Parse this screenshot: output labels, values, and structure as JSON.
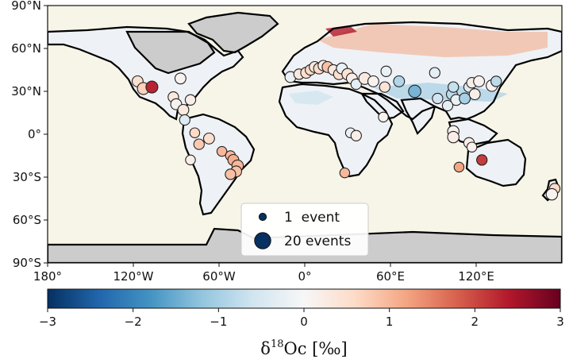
{
  "chart_data": {
    "type": "scatter",
    "title": "",
    "map": {
      "projection": "equirectangular",
      "xlim": [
        -180,
        180
      ],
      "ylim": [
        -90,
        90
      ],
      "x_ticks": [
        -180,
        -120,
        -60,
        0,
        60,
        120
      ],
      "x_tick_labels": [
        "180°",
        "120°W",
        "60°W",
        "0°",
        "60°E",
        "120°E"
      ],
      "y_ticks": [
        90,
        60,
        30,
        0,
        -30,
        -60,
        -90
      ],
      "y_tick_labels": [
        "90°N",
        "60°N",
        "30°N",
        "0°",
        "30°S",
        "60°S",
        "90°S"
      ],
      "ocean_color": "#f7f5e8",
      "ice_color": "#cccccc",
      "coastline_color": "#000000"
    },
    "colorbar": {
      "label_main": "δ",
      "label_sup": "18",
      "label_rest": "Oc [‰]",
      "vmin": -3,
      "vmax": 3,
      "ticks": [
        -3,
        -2,
        -1,
        0,
        1,
        2,
        3
      ],
      "tick_labels": [
        "−3",
        "−2",
        "−1",
        "0",
        "1",
        "2",
        "3"
      ],
      "colormap": "RdBu_r",
      "stops": [
        "#053061",
        "#2166ac",
        "#4393c3",
        "#92c5de",
        "#d1e5f0",
        "#f7f7f7",
        "#fddbc7",
        "#f4a582",
        "#d6604d",
        "#b2182b",
        "#67001f"
      ]
    },
    "legend": {
      "position": "bottom-center",
      "entries": [
        {
          "label": "1  event",
          "events": 1
        },
        {
          "label": "20 events",
          "events": 20
        }
      ]
    },
    "series": [
      {
        "points": [
          {
            "lon": -117,
            "lat": 37,
            "value": 0.5,
            "events": 6
          },
          {
            "lon": -113,
            "lat": 32,
            "value": 0.7,
            "events": 8
          },
          {
            "lon": -107,
            "lat": 33,
            "value": 2.3,
            "events": 8
          },
          {
            "lon": -87,
            "lat": 39,
            "value": 0.1,
            "events": 6
          },
          {
            "lon": -92,
            "lat": 26,
            "value": 0.3,
            "events": 5
          },
          {
            "lon": -90,
            "lat": 21,
            "value": 0.1,
            "events": 6
          },
          {
            "lon": -85,
            "lat": 17,
            "value": 0.3,
            "events": 6
          },
          {
            "lon": -80,
            "lat": 24,
            "value": 0.2,
            "events": 5
          },
          {
            "lon": -84,
            "lat": 10,
            "value": -0.4,
            "events": 5
          },
          {
            "lon": -77,
            "lat": 1,
            "value": 0.6,
            "events": 4
          },
          {
            "lon": -74,
            "lat": -7,
            "value": 0.8,
            "events": 5
          },
          {
            "lon": -67,
            "lat": -3,
            "value": 0.5,
            "events": 6
          },
          {
            "lon": -80,
            "lat": -18,
            "value": 0.2,
            "events": 4
          },
          {
            "lon": -58,
            "lat": -12,
            "value": 1.0,
            "events": 4
          },
          {
            "lon": -52,
            "lat": -15,
            "value": 1.0,
            "events": 4
          },
          {
            "lon": -50,
            "lat": -18,
            "value": 1.1,
            "events": 6
          },
          {
            "lon": -47,
            "lat": -22,
            "value": 1.0,
            "events": 7
          },
          {
            "lon": -48,
            "lat": -26,
            "value": 0.9,
            "events": 6
          },
          {
            "lon": -52,
            "lat": -28,
            "value": 0.9,
            "events": 5
          },
          {
            "lon": -10,
            "lat": 40,
            "value": -0.2,
            "events": 6
          },
          {
            "lon": -4,
            "lat": 42,
            "value": 0.3,
            "events": 5
          },
          {
            "lon": 1,
            "lat": 43,
            "value": 0.5,
            "events": 6
          },
          {
            "lon": 4,
            "lat": 45,
            "value": 0.6,
            "events": 5
          },
          {
            "lon": 7,
            "lat": 47,
            "value": 0.3,
            "events": 6
          },
          {
            "lon": 10,
            "lat": 46,
            "value": 0.6,
            "events": 6
          },
          {
            "lon": 13,
            "lat": 48,
            "value": 0.2,
            "events": 5
          },
          {
            "lon": 16,
            "lat": 47,
            "value": 0.9,
            "events": 6
          },
          {
            "lon": 20,
            "lat": 45,
            "value": 0.3,
            "events": 5
          },
          {
            "lon": 24,
            "lat": 42,
            "value": 0.5,
            "events": 6
          },
          {
            "lon": 26,
            "lat": 46,
            "value": -0.2,
            "events": 6
          },
          {
            "lon": 30,
            "lat": 42,
            "value": 0.4,
            "events": 7
          },
          {
            "lon": 33,
            "lat": 39,
            "value": 0.2,
            "events": 6
          },
          {
            "lon": 36,
            "lat": 35,
            "value": -0.3,
            "events": 5
          },
          {
            "lon": 42,
            "lat": 39,
            "value": 0.3,
            "events": 8
          },
          {
            "lon": 48,
            "lat": 37,
            "value": 0.1,
            "events": 6
          },
          {
            "lon": 56,
            "lat": 33,
            "value": 0.4,
            "events": 5
          },
          {
            "lon": 66,
            "lat": 37,
            "value": -0.9,
            "events": 6
          },
          {
            "lon": 77,
            "lat": 30,
            "value": -1.4,
            "events": 9
          },
          {
            "lon": 93,
            "lat": 25,
            "value": -0.6,
            "events": 5
          },
          {
            "lon": 103,
            "lat": 28,
            "value": -0.8,
            "events": 6
          },
          {
            "lon": 106,
            "lat": 24,
            "value": -0.2,
            "events": 6
          },
          {
            "lon": 112,
            "lat": 25,
            "value": -1.0,
            "events": 6
          },
          {
            "lon": 104,
            "lat": 33,
            "value": -0.7,
            "events": 5
          },
          {
            "lon": 115,
            "lat": 33,
            "value": -0.4,
            "events": 5
          },
          {
            "lon": 117,
            "lat": 36,
            "value": 0.2,
            "events": 5
          },
          {
            "lon": 122,
            "lat": 37,
            "value": 0.1,
            "events": 6
          },
          {
            "lon": 119,
            "lat": 28,
            "value": 0.2,
            "events": 6
          },
          {
            "lon": 131,
            "lat": 34,
            "value": 0.1,
            "events": 7
          },
          {
            "lon": 134,
            "lat": 37,
            "value": -0.8,
            "events": 5
          },
          {
            "lon": 91,
            "lat": 43,
            "value": -0.3,
            "events": 5
          },
          {
            "lon": 57,
            "lat": 44,
            "value": -0.2,
            "events": 5
          },
          {
            "lon": 32,
            "lat": 1,
            "value": -0.2,
            "events": 4
          },
          {
            "lon": 36,
            "lat": -1,
            "value": 0.2,
            "events": 5
          },
          {
            "lon": 28,
            "lat": -27,
            "value": 1.0,
            "events": 4
          },
          {
            "lon": 55,
            "lat": 12,
            "value": 0.1,
            "events": 4
          },
          {
            "lon": 100,
            "lat": 20,
            "value": -0.3,
            "events": 5
          },
          {
            "lon": 104,
            "lat": 2,
            "value": 0.1,
            "events": 7
          },
          {
            "lon": 104,
            "lat": -2,
            "value": 0.2,
            "events": 7
          },
          {
            "lon": 115,
            "lat": -6,
            "value": 0.2,
            "events": 5
          },
          {
            "lon": 117,
            "lat": -9,
            "value": 0.1,
            "events": 4
          },
          {
            "lon": 108,
            "lat": -23,
            "value": 1.2,
            "events": 4
          },
          {
            "lon": 124,
            "lat": -18,
            "value": 2.1,
            "events": 5
          },
          {
            "lon": 175,
            "lat": -38,
            "value": 0.6,
            "events": 5
          },
          {
            "lon": 173,
            "lat": -42,
            "value": 0.1,
            "events": 7
          }
        ]
      }
    ]
  }
}
